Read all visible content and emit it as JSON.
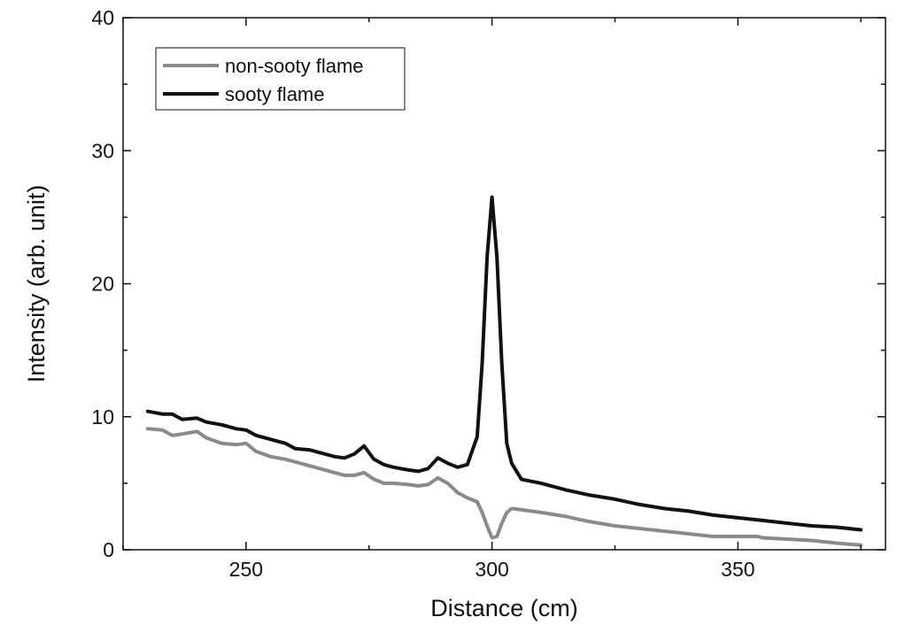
{
  "chart_data": {
    "type": "line",
    "xlabel": "Distance (cm)",
    "ylabel": "Intensity (arb. unit)",
    "xlim": [
      225,
      380
    ],
    "ylim": [
      0,
      40
    ],
    "xticks": [
      250,
      300,
      350
    ],
    "yticks": [
      0,
      10,
      20,
      30,
      40
    ],
    "grid": false,
    "legend_position": "top-left",
    "series": [
      {
        "name": "non-sooty flame",
        "color": "#8a8a8a",
        "x": [
          230,
          233,
          235,
          237,
          240,
          242,
          245,
          248,
          250,
          252,
          255,
          258,
          260,
          263,
          265,
          268,
          270,
          272,
          274,
          276,
          278,
          280,
          283,
          285,
          287,
          289,
          291,
          293,
          295,
          297,
          298,
          299,
          300,
          301,
          302,
          303,
          304,
          306,
          310,
          315,
          320,
          325,
          330,
          335,
          340,
          345,
          350,
          354,
          355,
          360,
          365,
          370,
          375
        ],
        "y": [
          9.1,
          9.0,
          8.6,
          8.7,
          8.9,
          8.4,
          8.0,
          7.9,
          8.0,
          7.4,
          7.0,
          6.8,
          6.6,
          6.3,
          6.1,
          5.8,
          5.6,
          5.6,
          5.8,
          5.3,
          5.0,
          5.0,
          4.9,
          4.8,
          4.9,
          5.4,
          5.0,
          4.3,
          3.9,
          3.6,
          2.8,
          1.8,
          0.9,
          1.0,
          2.0,
          2.8,
          3.1,
          3.0,
          2.8,
          2.5,
          2.1,
          1.8,
          1.6,
          1.4,
          1.2,
          1.0,
          1.0,
          1.0,
          0.9,
          0.8,
          0.7,
          0.5,
          0.35
        ]
      },
      {
        "name": "sooty flame",
        "color": "#111111",
        "x": [
          230,
          233,
          235,
          237,
          240,
          242,
          245,
          248,
          250,
          252,
          255,
          258,
          260,
          263,
          265,
          268,
          270,
          272,
          274,
          276,
          278,
          280,
          283,
          285,
          287,
          289,
          291,
          293,
          295,
          297,
          298,
          299,
          300,
          301,
          302,
          303,
          304,
          306,
          310,
          315,
          320,
          325,
          330,
          335,
          340,
          345,
          350,
          355,
          360,
          365,
          370,
          375
        ],
        "y": [
          10.4,
          10.2,
          10.2,
          9.8,
          9.9,
          9.6,
          9.4,
          9.1,
          9.0,
          8.6,
          8.3,
          8.0,
          7.6,
          7.5,
          7.3,
          7.0,
          6.9,
          7.2,
          7.8,
          6.8,
          6.4,
          6.2,
          6.0,
          5.9,
          6.1,
          6.9,
          6.5,
          6.2,
          6.4,
          8.5,
          14.0,
          22.0,
          26.5,
          22.0,
          14.0,
          8.0,
          6.5,
          5.3,
          5.0,
          4.5,
          4.1,
          3.8,
          3.4,
          3.1,
          2.9,
          2.6,
          2.4,
          2.2,
          2.0,
          1.8,
          1.7,
          1.5
        ]
      }
    ]
  }
}
